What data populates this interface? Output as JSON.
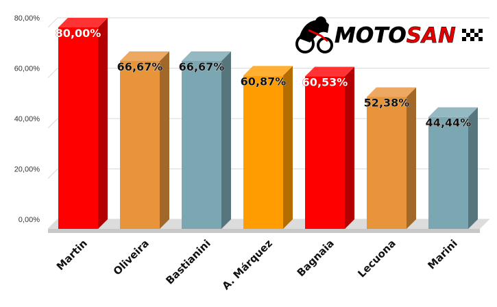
{
  "chart_data": {
    "type": "bar",
    "categories": [
      "Martin",
      "Oliveira",
      "Bastianini",
      "A. Márquez",
      "Bagnaia",
      "Lecuona",
      "Marini"
    ],
    "values": [
      80.0,
      66.67,
      66.67,
      60.87,
      60.53,
      52.38,
      44.44
    ],
    "value_labels": [
      "80,00%",
      "66,67%",
      "66,67%",
      "60,87%",
      "60,53%",
      "52,38%",
      "44,44%"
    ],
    "bar_colors": [
      "#ff0000",
      "#e8943a",
      "#7ba7b3",
      "#ff9c00",
      "#ff0000",
      "#e8943a",
      "#7ba7b3"
    ],
    "label_colors": [
      "#ffffff",
      "#111111",
      "#111111",
      "#111111",
      "#ffffff",
      "#111111",
      "#111111"
    ],
    "y_ticks": [
      0,
      20,
      40,
      60,
      80
    ],
    "y_tick_labels": [
      "0,00%",
      "20,00%",
      "40,00%",
      "60,00%",
      "80,00%"
    ],
    "ylim": [
      0,
      80
    ],
    "grid": true,
    "style": "3d"
  },
  "logo": {
    "moto": "MOTO",
    "san": "SAN"
  }
}
